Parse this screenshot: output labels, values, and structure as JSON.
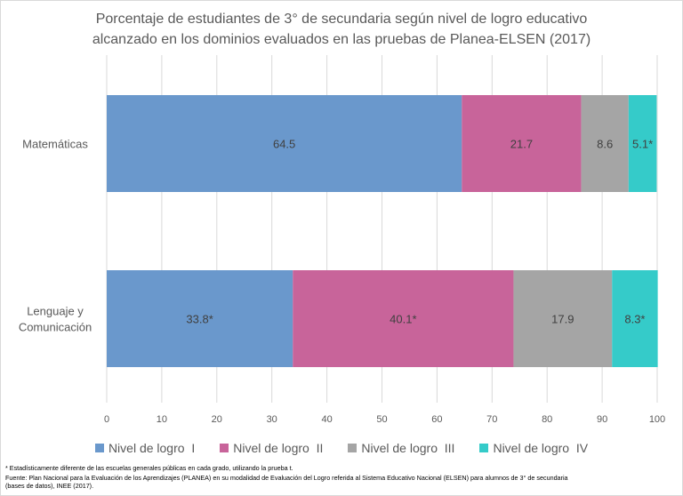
{
  "title": {
    "line1": "Porcentaje de estudiantes de 3° de secundaria según nivel de logro educativo",
    "line2": "alcanzado en los dominios evaluados en las pruebas de Planea-ELSEN (2017)"
  },
  "footnotes": {
    "note1": "* Estadísticamente diferente de las escuelas generales públicas en cada grado, utilizando la prueba t.",
    "note2": "Fuente: Plan Nacional para la Evaluación de los Aprendizajes (PLANEA) en su modalidad de Evaluación del Logro referida al Sistema Educativo Nacional (ELSEN) para alumnos de 3° de secundaria",
    "note3": "(bases de datos), INEE (2017)."
  },
  "chart_data": {
    "type": "bar",
    "orientation": "horizontal",
    "stacked": true,
    "categories": [
      "Matemáticas",
      "Lenguaje y Comunicación"
    ],
    "category_label_lines": [
      [
        "Matemáticas"
      ],
      [
        "Lenguaje y",
        "Comunicación"
      ]
    ],
    "series": [
      {
        "name": "Nivel de logro  I",
        "color": "#6a98cc",
        "values": [
          64.5,
          33.8
        ],
        "labels": [
          "64.5",
          "33.8*"
        ]
      },
      {
        "name": "Nivel de logro  II",
        "color": "#c8649a",
        "values": [
          21.7,
          40.1
        ],
        "labels": [
          "21.7",
          "40.1*"
        ]
      },
      {
        "name": "Nivel de logro  III",
        "color": "#a5a5a5",
        "values": [
          8.6,
          17.9
        ],
        "labels": [
          "8.6",
          "17.9"
        ]
      },
      {
        "name": "Nivel de logro  IV",
        "color": "#35cbc9",
        "values": [
          5.1,
          8.3
        ],
        "labels": [
          "5.1*",
          "8.3*"
        ]
      }
    ],
    "xlim": [
      0,
      100
    ],
    "xticks": [
      0,
      10,
      20,
      30,
      40,
      50,
      60,
      70,
      80,
      90,
      100
    ],
    "gridlines": true,
    "legend_position": "bottom"
  }
}
